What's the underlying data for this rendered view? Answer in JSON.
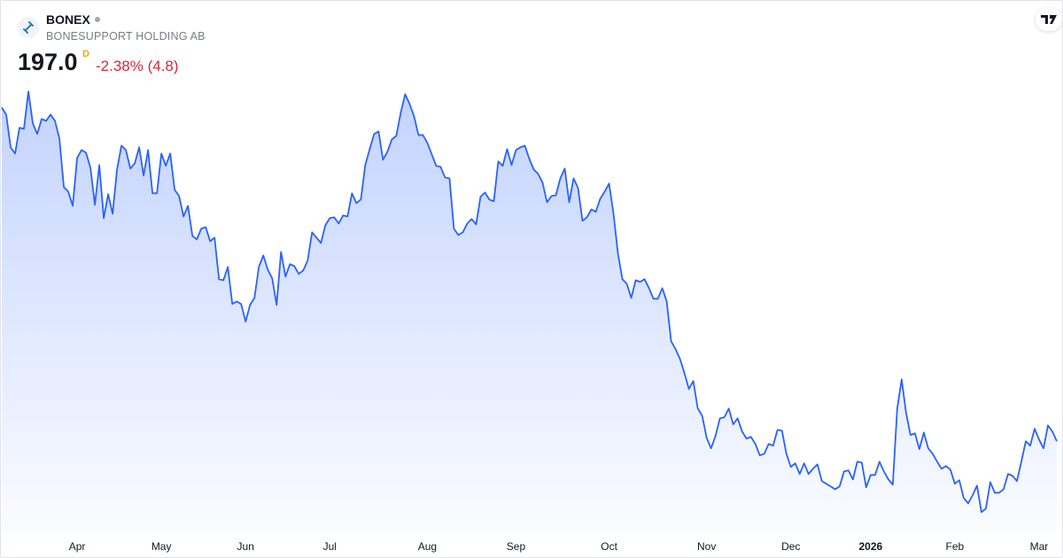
{
  "header": {
    "symbol": "BONEX",
    "company": "BONESUPPORT HOLDING AB",
    "last_price": "197.0",
    "resolution": "D",
    "change": "-2.38% (4.8)"
  },
  "chart_data": {
    "type": "area",
    "color": "#2962ff",
    "values": [
      357.2,
      353.8,
      338.1,
      335.1,
      347.5,
      347.0,
      364.9,
      349.6,
      344.5,
      351.7,
      350.8,
      353.8,
      350.8,
      342.3,
      319.0,
      316.8,
      310.0,
      333.0,
      336.8,
      335.5,
      328.3,
      310.5,
      329.6,
      304.1,
      315.6,
      306.2,
      327.5,
      338.9,
      336.8,
      327.9,
      330.4,
      338.1,
      324.5,
      336.8,
      316.0,
      316.0,
      335.1,
      329.2,
      335.1,
      317.7,
      314.7,
      304.9,
      310.0,
      295.6,
      293.9,
      299.0,
      299.8,
      293.0,
      294.7,
      274.8,
      274.3,
      280.7,
      262.9,
      264.1,
      262.9,
      254.4,
      262.4,
      265.8,
      280.7,
      286.2,
      279.4,
      275.2,
      262.4,
      287.9,
      276.0,
      282.0,
      281.1,
      277.3,
      279.0,
      283.7,
      297.3,
      294.7,
      292.2,
      300.7,
      304.1,
      304.5,
      301.5,
      305.4,
      304.9,
      316.0,
      311.3,
      313.0,
      329.6,
      337.2,
      344.5,
      345.7,
      332.1,
      336.0,
      341.9,
      343.6,
      354.7,
      363.6,
      358.9,
      353.0,
      344.0,
      344.0,
      340.2,
      334.7,
      329.2,
      328.7,
      323.6,
      323.2,
      299.0,
      296.0,
      297.3,
      301.5,
      303.7,
      301.1,
      314.3,
      316.4,
      313.0,
      312.2,
      331.3,
      329.2,
      337.2,
      329.6,
      336.8,
      338.1,
      338.9,
      332.6,
      327.5,
      325.3,
      321.1,
      311.7,
      314.7,
      315.1,
      323.2,
      327.9,
      311.7,
      323.2,
      318.5,
      302.8,
      304.5,
      308.3,
      307.1,
      313.4,
      316.8,
      320.7,
      306.2,
      287.1,
      274.8,
      272.6,
      265.8,
      274.3,
      273.5,
      274.8,
      270.5,
      265.4,
      265.4,
      270.5,
      264.1,
      245.0,
      241.2,
      236.5,
      229.7,
      222.1,
      225.9,
      212.7,
      209.3,
      198.7,
      193.6,
      199.5,
      208.0,
      208.5,
      212.7,
      205.1,
      208.0,
      201.7,
      198.3,
      199.1,
      195.7,
      190.2,
      191.0,
      195.7,
      194.9,
      202.5,
      202.1,
      191.0,
      184.7,
      186.4,
      181.3,
      186.4,
      181.3,
      183.8,
      185.9,
      177.9,
      176.6,
      175.3,
      174.0,
      175.3,
      182.5,
      183.0,
      178.7,
      187.2,
      186.8,
      174.9,
      180.8,
      180.8,
      187.2,
      182.5,
      178.7,
      176.2,
      212.7,
      226.7,
      210.6,
      200.0,
      200.8,
      193.2,
      201.2,
      193.6,
      191.0,
      187.2,
      183.8,
      185.1,
      183.4,
      176.6,
      178.3,
      169.8,
      167.2,
      171.1,
      175.7,
      163.0,
      164.7,
      177.4,
      172.3,
      172.3,
      174.0,
      181.3,
      180.4,
      177.9,
      187.2,
      197.0,
      194.9,
      203.0,
      197.8,
      193.6,
      204.6,
      201.7,
      197.0
    ],
    "xlim": [
      0,
      238
    ],
    "xticks": [
      {
        "value": 17,
        "label": "Apr"
      },
      {
        "value": 36,
        "label": "May"
      },
      {
        "value": 55,
        "label": "Jun"
      },
      {
        "value": 74,
        "label": "Jul"
      },
      {
        "value": 96,
        "label": "Aug"
      },
      {
        "value": 116,
        "label": "Sep"
      },
      {
        "value": 137,
        "label": "Oct"
      },
      {
        "value": 159,
        "label": "Nov"
      },
      {
        "value": 178,
        "label": "Dec"
      },
      {
        "value": 196,
        "label": "2026"
      },
      {
        "value": 215,
        "label": "Feb"
      },
      {
        "value": 234,
        "label": "Mar"
      }
    ],
    "ylim": [
      155,
      375
    ]
  }
}
